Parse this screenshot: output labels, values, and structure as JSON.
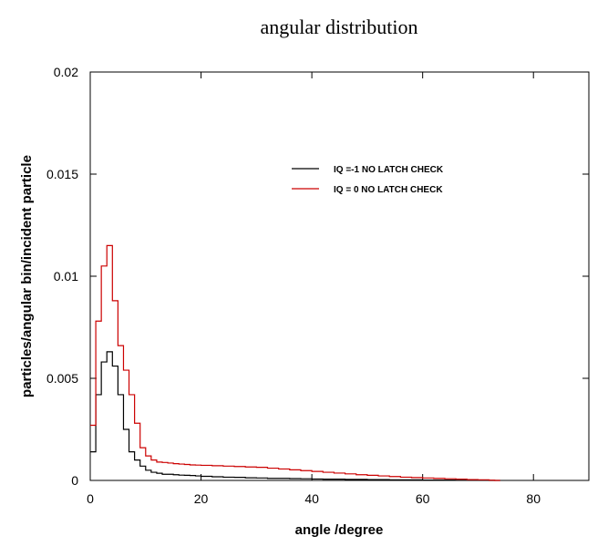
{
  "chart_data": {
    "type": "line",
    "step": true,
    "title": "angular distribution",
    "xlabel": "angle /degree",
    "ylabel": "particles/angular bin/incident particle",
    "xlim": [
      0,
      90
    ],
    "ylim": [
      0,
      0.02
    ],
    "x_ticks": [
      0,
      20,
      40,
      60,
      80
    ],
    "y_ticks": [
      0,
      0.005,
      0.01,
      0.015,
      0.02
    ],
    "x_tick_labels": [
      "0",
      "20",
      "40",
      "60",
      "80"
    ],
    "y_tick_labels": [
      "0",
      "0.005",
      "0.01",
      "0.015",
      "0.02"
    ],
    "grid": false,
    "legend_position": "top-right",
    "bin_width": 1,
    "x": [
      0,
      1,
      2,
      3,
      4,
      5,
      6,
      7,
      8,
      9,
      10,
      11,
      12,
      13,
      14,
      15,
      16,
      17,
      18,
      19,
      20,
      22,
      24,
      26,
      28,
      30,
      32,
      34,
      36,
      38,
      40,
      42,
      44,
      46,
      48,
      50,
      52,
      54,
      56,
      58,
      60,
      62,
      64,
      66,
      68,
      70,
      72,
      73
    ],
    "series": [
      {
        "name": "IQ =-1 NO LATCH CHECK",
        "color": "#000000",
        "values": [
          0.0014,
          0.0042,
          0.0058,
          0.0063,
          0.0056,
          0.0042,
          0.0025,
          0.0014,
          0.001,
          0.0007,
          0.0005,
          0.0004,
          0.00035,
          0.0003,
          0.0003,
          0.00028,
          0.00026,
          0.00025,
          0.00024,
          0.00022,
          0.0002,
          0.00018,
          0.00016,
          0.00015,
          0.00013,
          0.00012,
          0.0001,
          0.0001,
          9e-05,
          8e-05,
          7e-05,
          6e-05,
          6e-05,
          5e-05,
          5e-05,
          4e-05,
          4e-05,
          3e-05,
          3e-05,
          3e-05,
          2e-05,
          2e-05,
          2e-05,
          1e-05,
          1e-05,
          1e-05,
          0.0,
          0.0
        ]
      },
      {
        "name": "IQ = 0 NO LATCH CHECK",
        "color": "#cc0000",
        "values": [
          0.0027,
          0.0078,
          0.0105,
          0.0115,
          0.0088,
          0.0066,
          0.0054,
          0.0042,
          0.0028,
          0.0016,
          0.0012,
          0.001,
          0.0009,
          0.00088,
          0.00085,
          0.00082,
          0.0008,
          0.00078,
          0.00076,
          0.00075,
          0.00074,
          0.00072,
          0.0007,
          0.00068,
          0.00066,
          0.00064,
          0.0006,
          0.00056,
          0.00052,
          0.00048,
          0.00044,
          0.0004,
          0.00036,
          0.00032,
          0.00028,
          0.00025,
          0.00022,
          0.00019,
          0.00016,
          0.00014,
          0.00012,
          0.0001,
          8e-05,
          6e-05,
          4e-05,
          3e-05,
          1e-05,
          0.0
        ]
      }
    ]
  }
}
